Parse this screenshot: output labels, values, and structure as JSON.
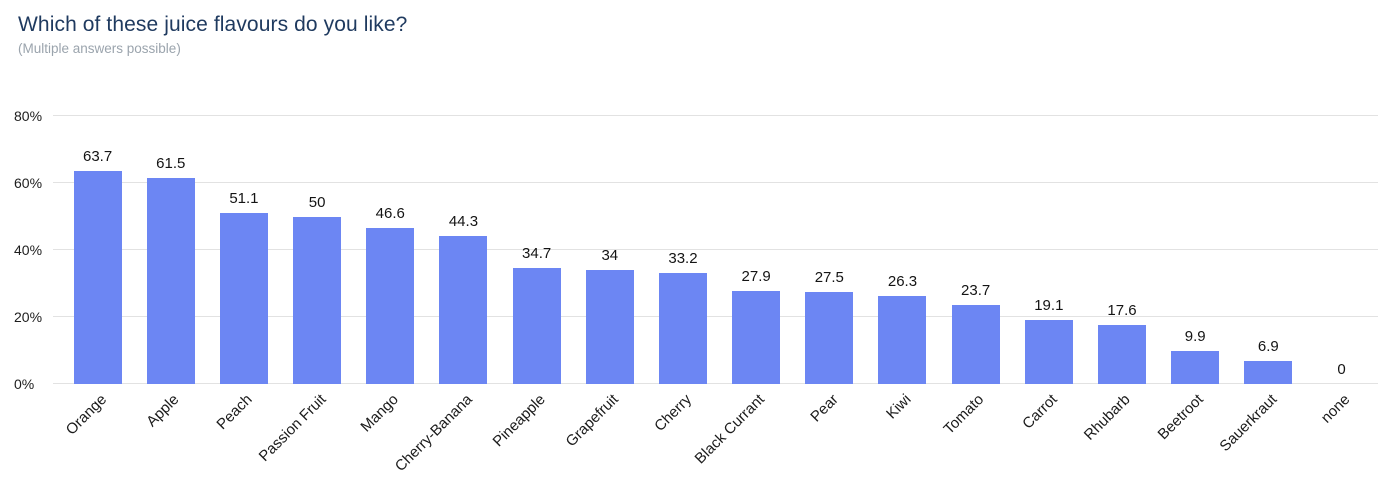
{
  "header": {
    "title": "Which of these juice flavours do you like?",
    "subtitle": "(Multiple answers possible)"
  },
  "chart_data": {
    "type": "bar",
    "title": "Which of these juice flavours do you like?",
    "subtitle": "(Multiple answers possible)",
    "categories": [
      "Orange",
      "Apple",
      "Peach",
      "Passion Fruit",
      "Mango",
      "Cherry-Banana",
      "Pineapple",
      "Grapefruit",
      "Cherry",
      "Black Currant",
      "Pear",
      "Kiwi",
      "Tomato",
      "Carrot",
      "Rhubarb",
      "Beetroot",
      "Sauerkraut",
      "none"
    ],
    "values": [
      63.7,
      61.5,
      51.1,
      50,
      46.6,
      44.3,
      34.7,
      34,
      33.2,
      27.9,
      27.5,
      26.3,
      23.7,
      19.1,
      17.6,
      9.9,
      6.9,
      0
    ],
    "value_labels": [
      "63.7",
      "61.5",
      "51.1",
      "50",
      "46.6",
      "44.3",
      "34.7",
      "34",
      "33.2",
      "27.9",
      "27.5",
      "26.3",
      "23.7",
      "19.1",
      "17.6",
      "9.9",
      "6.9",
      "0"
    ],
    "unit": "%",
    "xlabel": "",
    "ylabel": "",
    "ylim": [
      0,
      100
    ],
    "yticks": [
      0,
      20,
      40,
      60,
      80
    ],
    "ytick_labels": [
      "0%",
      "20%",
      "40%",
      "60%",
      "80%"
    ],
    "grid": true,
    "legend": false,
    "x_label_rotation_deg": -45,
    "colors": {
      "bar": "#6C86F3",
      "gridline": "#E2E2E2",
      "title": "#1F3A5F",
      "subtitle": "#9BA4AD",
      "value_label": "#141414",
      "axis_label": "#1d1d1d"
    }
  }
}
